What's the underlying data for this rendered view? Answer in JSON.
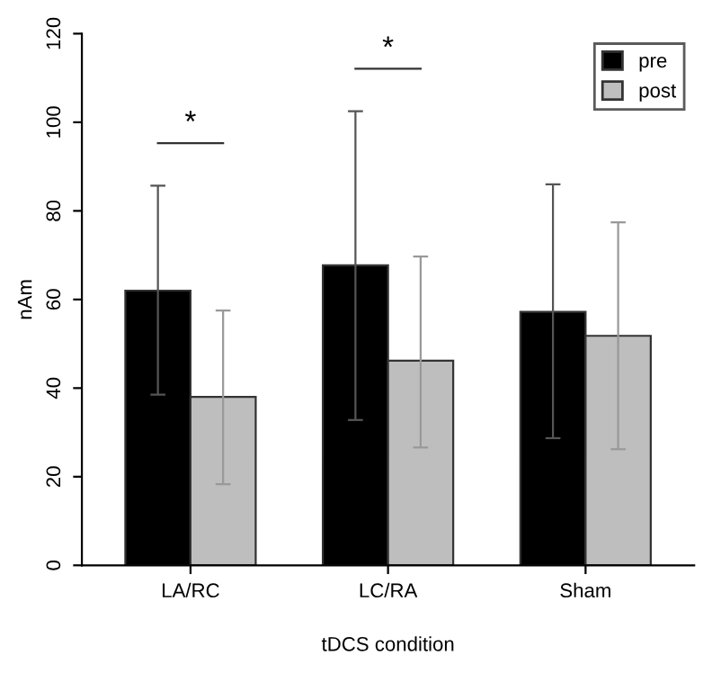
{
  "chart_data": {
    "type": "bar",
    "xlabel": "tDCS condition",
    "ylabel": "nAm",
    "categories": [
      "LA/RC",
      "LC/RA",
      "Sham"
    ],
    "series": [
      {
        "name": "pre",
        "color": "#000000",
        "values": [
          62.0,
          67.7,
          57.2
        ],
        "errors": [
          [
            38.5,
            85.7
          ],
          [
            32.8,
            102.5
          ],
          [
            28.7,
            86.0
          ]
        ]
      },
      {
        "name": "post",
        "color": "#bebebe",
        "values": [
          38.0,
          46.2,
          51.8
        ],
        "errors": [
          [
            18.3,
            57.5
          ],
          [
            26.6,
            69.7
          ],
          [
            26.2,
            77.4
          ]
        ]
      }
    ],
    "ylim": [
      0,
      120
    ],
    "yticks": [
      0,
      20,
      40,
      60,
      80,
      100,
      120
    ],
    "annotations": [
      "*",
      "*"
    ],
    "legend": "top right",
    "grid": false
  }
}
